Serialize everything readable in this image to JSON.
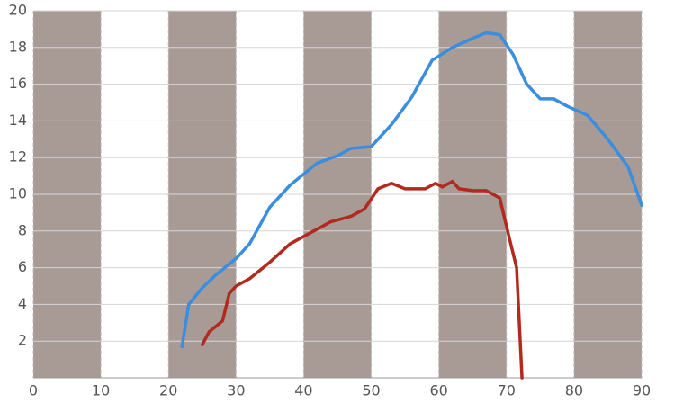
{
  "chart_data": {
    "type": "line",
    "series": [
      {
        "color": "#3a8ee0",
        "x": [
          22,
          23,
          25,
          27,
          30,
          32,
          35,
          38,
          42,
          45,
          47,
          50,
          53,
          56,
          59,
          62,
          65,
          67,
          69,
          71,
          73,
          75,
          77,
          79,
          82,
          85,
          88,
          90
        ],
        "values": [
          1.7,
          4.0,
          4.9,
          5.6,
          6.5,
          7.3,
          9.3,
          10.5,
          11.7,
          12.1,
          12.5,
          12.6,
          13.8,
          15.3,
          17.3,
          18.0,
          18.5,
          18.8,
          18.7,
          17.6,
          16.0,
          15.2,
          15.2,
          14.8,
          14.3,
          13.0,
          11.5,
          9.4
        ]
      },
      {
        "color": "#b22a1e",
        "x": [
          25,
          26,
          28,
          29,
          30,
          32,
          35,
          38,
          41,
          44,
          47,
          49,
          51,
          53,
          55,
          58,
          59.5,
          60.5,
          62,
          63,
          65,
          67,
          69,
          70.5,
          71.5,
          72.3
        ],
        "values": [
          1.8,
          2.5,
          3.1,
          4.6,
          5.0,
          5.4,
          6.3,
          7.3,
          7.9,
          8.5,
          8.8,
          9.2,
          10.3,
          10.6,
          10.3,
          10.3,
          10.6,
          10.4,
          10.7,
          10.3,
          10.2,
          10.2,
          9.8,
          7.5,
          6.0,
          0
        ]
      }
    ],
    "xlim": [
      0,
      90
    ],
    "xticks": [
      0,
      10,
      20,
      30,
      40,
      50,
      60,
      70,
      80,
      90
    ],
    "ylim": [
      0,
      20
    ],
    "yticks": [
      2,
      4,
      6,
      8,
      10,
      12,
      14,
      16,
      18,
      20
    ],
    "grid": true,
    "band_color": "#a89a95"
  }
}
